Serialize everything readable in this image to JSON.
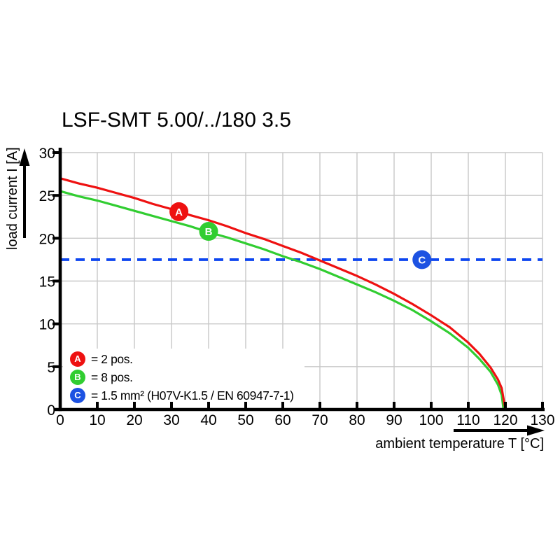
{
  "chart_data": {
    "type": "line",
    "title": "LSF-SMT 5.00/../180 3.5",
    "xlabel": "ambient temperature T [°C]",
    "ylabel": "load current I [A]",
    "xlim": [
      0,
      130
    ],
    "ylim": [
      0,
      30
    ],
    "x_ticks": [
      0,
      10,
      20,
      30,
      40,
      50,
      60,
      70,
      80,
      90,
      100,
      110,
      120,
      130
    ],
    "y_ticks": [
      0,
      5,
      10,
      15,
      20,
      25,
      30
    ],
    "grid": true,
    "grid_color": "#c8c8c8",
    "axis_color": "#000000",
    "series": [
      {
        "name": "A",
        "legend_label": "= 2 pos.",
        "color": "#ee1111",
        "x": [
          0,
          5,
          10,
          15,
          20,
          25,
          30,
          35,
          40,
          45,
          50,
          55,
          60,
          65,
          70,
          75,
          80,
          85,
          90,
          95,
          100,
          105,
          110,
          113,
          116,
          118,
          119,
          120
        ],
        "y": [
          27,
          26.4,
          25.9,
          25.3,
          24.7,
          24,
          23.4,
          22.7,
          22.1,
          21.4,
          20.6,
          19.9,
          19.1,
          18.3,
          17.4,
          16.5,
          15.6,
          14.6,
          13.5,
          12.3,
          11,
          9.6,
          7.8,
          6.5,
          4.9,
          3.5,
          2.5,
          0
        ],
        "marker": {
          "letter": "A",
          "t": 32,
          "i": 23.1
        }
      },
      {
        "name": "B",
        "legend_label": "= 8 pos.",
        "color": "#31cd31",
        "x": [
          0,
          5,
          10,
          15,
          20,
          25,
          30,
          35,
          40,
          45,
          50,
          55,
          60,
          65,
          70,
          75,
          80,
          85,
          90,
          95,
          100,
          105,
          110,
          113,
          116,
          118,
          119,
          119.5
        ],
        "y": [
          25.5,
          24.9,
          24.4,
          23.8,
          23.2,
          22.6,
          22,
          21.4,
          20.7,
          20.1,
          19.4,
          18.7,
          17.9,
          17.2,
          16.4,
          15.5,
          14.6,
          13.7,
          12.7,
          11.6,
          10.3,
          8.9,
          7.2,
          5.9,
          4.4,
          2.9,
          1.7,
          0
        ],
        "marker": {
          "letter": "B",
          "t": 40,
          "i": 20.8
        }
      },
      {
        "name": "C",
        "legend_label": "= 1.5 mm² (H07V-K1.5 / EN 60947-7-1)",
        "color": "#0d46f0",
        "style": "dashed",
        "y_const": 17.5,
        "marker": {
          "letter": "C",
          "t": 97.5,
          "i": 17.5,
          "color": "#1d52e2"
        }
      }
    ]
  }
}
